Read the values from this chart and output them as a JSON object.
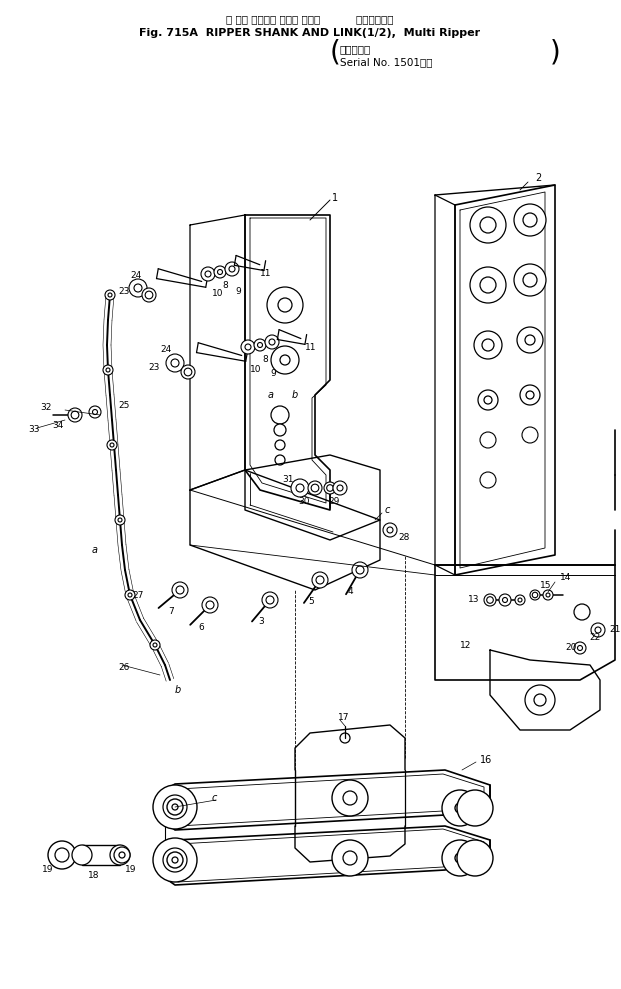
{
  "bg_color": "#ffffff",
  "lc": "#000000",
  "tc": "#000000",
  "fig_width": 6.21,
  "fig_height": 9.89,
  "dpi": 100,
  "title1": "リ ッパ シャンク および リンク           マルチリッパ",
  "title2": "Fig. 715A  RIPPER SHANK AND LINK(1/2),  Multi Ripper",
  "title3a": "（適用号機",
  "title3b": "Serial No. 1501～）"
}
